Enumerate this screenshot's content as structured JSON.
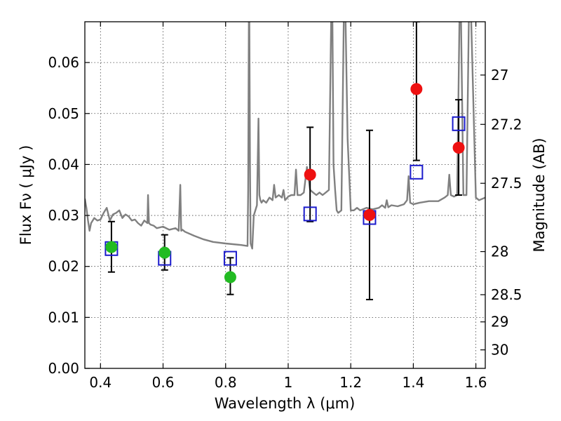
{
  "chart_data": {
    "type": "scatter",
    "xlabel": "Wavelength  λ (μm)",
    "ylabel": "Flux  Fν  ( μJy )",
    "ylabel_right": "Magnitude (AB)",
    "xlim": [
      0.35,
      1.63
    ],
    "ylim": [
      0.0,
      0.068
    ],
    "x_ticks": [
      0.4,
      0.6,
      0.8,
      1.0,
      1.2,
      1.4,
      1.6
    ],
    "x_tick_labels": [
      "0.4",
      "0.6",
      "0.8",
      "1",
      "1.2",
      "1.4",
      "1.6"
    ],
    "y_ticks": [
      0.0,
      0.01,
      0.02,
      0.03,
      0.04,
      0.05,
      0.06
    ],
    "y_tick_labels": [
      "0.00",
      "0.01",
      "0.02",
      "0.03",
      "0.04",
      "0.05",
      "0.06"
    ],
    "right_ticks": [
      27,
      27.2,
      27.5,
      28,
      28.5,
      29,
      30
    ],
    "right_tick_labels": [
      "27",
      "27.2",
      "27.5",
      "28",
      "28.5",
      "29",
      "30"
    ],
    "grid": true,
    "colors": {
      "spectrum": "#808080",
      "green": "#22bb22",
      "red": "#ee1111",
      "model": "#1a1acc",
      "errorbar": "#000000"
    },
    "spectrum": {
      "x": [
        0.35,
        0.355,
        0.36,
        0.365,
        0.37,
        0.38,
        0.39,
        0.4,
        0.41,
        0.42,
        0.43,
        0.44,
        0.45,
        0.46,
        0.47,
        0.48,
        0.49,
        0.5,
        0.51,
        0.52,
        0.53,
        0.54,
        0.55,
        0.552,
        0.555,
        0.56,
        0.57,
        0.58,
        0.6,
        0.62,
        0.64,
        0.65,
        0.655,
        0.658,
        0.662,
        0.67,
        0.7,
        0.73,
        0.76,
        0.8,
        0.85,
        0.87,
        0.872,
        0.875,
        0.878,
        0.88,
        0.885,
        0.89,
        0.9,
        0.905,
        0.908,
        0.911,
        0.915,
        0.92,
        0.93,
        0.94,
        0.95,
        0.955,
        0.96,
        0.97,
        0.98,
        0.985,
        0.99,
        1.0,
        1.01,
        1.02,
        1.025,
        1.03,
        1.04,
        1.05,
        1.06,
        1.07,
        1.08,
        1.09,
        1.1,
        1.11,
        1.12,
        1.13,
        1.14,
        1.145,
        1.15,
        1.155,
        1.16,
        1.17,
        1.18,
        1.19,
        1.2,
        1.21,
        1.22,
        1.23,
        1.25,
        1.27,
        1.29,
        1.3,
        1.31,
        1.315,
        1.32,
        1.33,
        1.35,
        1.37,
        1.38,
        1.385,
        1.39,
        1.4,
        1.42,
        1.45,
        1.48,
        1.5,
        1.51,
        1.515,
        1.52,
        1.53,
        1.54,
        1.55,
        1.56,
        1.57,
        1.58,
        1.6,
        1.61,
        1.63
      ],
      "y": [
        0.0333,
        0.0315,
        0.029,
        0.027,
        0.0285,
        0.0295,
        0.029,
        0.0292,
        0.0305,
        0.0315,
        0.029,
        0.0302,
        0.0305,
        0.031,
        0.0295,
        0.0302,
        0.0298,
        0.029,
        0.0292,
        0.0285,
        0.028,
        0.029,
        0.0285,
        0.034,
        0.0285,
        0.0282,
        0.028,
        0.0275,
        0.0278,
        0.0272,
        0.0275,
        0.027,
        0.036,
        0.027,
        0.0272,
        0.0268,
        0.026,
        0.0253,
        0.0248,
        0.0245,
        0.0242,
        0.024,
        0.035,
        0.08,
        0.04,
        0.0245,
        0.0235,
        0.03,
        0.032,
        0.049,
        0.034,
        0.033,
        0.0325,
        0.033,
        0.0325,
        0.0335,
        0.033,
        0.036,
        0.0335,
        0.034,
        0.0335,
        0.035,
        0.033,
        0.0337,
        0.034,
        0.034,
        0.039,
        0.034,
        0.034,
        0.0345,
        0.0395,
        0.035,
        0.0345,
        0.034,
        0.0345,
        0.034,
        0.0345,
        0.035,
        0.08,
        0.04,
        0.035,
        0.031,
        0.0305,
        0.031,
        0.08,
        0.045,
        0.031,
        0.031,
        0.0315,
        0.031,
        0.0315,
        0.0312,
        0.0315,
        0.032,
        0.0315,
        0.033,
        0.0316,
        0.032,
        0.0318,
        0.0322,
        0.033,
        0.0377,
        0.0325,
        0.0322,
        0.0325,
        0.0328,
        0.0328,
        0.0335,
        0.034,
        0.038,
        0.034,
        0.0337,
        0.034,
        0.08,
        0.034,
        0.034,
        0.08,
        0.0335,
        0.033,
        0.0335
      ]
    },
    "model_squares": {
      "x": [
        0.435,
        0.605,
        0.815,
        1.07,
        1.26,
        1.41,
        1.545
      ],
      "y": [
        0.0235,
        0.0216,
        0.0216,
        0.0303,
        0.0296,
        0.0385,
        0.048
      ]
    },
    "green_points": {
      "x": [
        0.435,
        0.605,
        0.815
      ],
      "y": [
        0.0238,
        0.0227,
        0.0179
      ],
      "err_low": [
        0.0189,
        0.0193,
        0.0145
      ],
      "err_high": [
        0.0288,
        0.0262,
        0.0217
      ]
    },
    "red_points": {
      "x": [
        1.07,
        1.26,
        1.41,
        1.545
      ],
      "y": [
        0.038,
        0.0301,
        0.0548,
        0.0433
      ],
      "err_low": [
        0.0288,
        0.0135,
        0.0408,
        0.034
      ],
      "err_high": [
        0.0473,
        0.0467,
        0.068,
        0.0527
      ]
    }
  }
}
